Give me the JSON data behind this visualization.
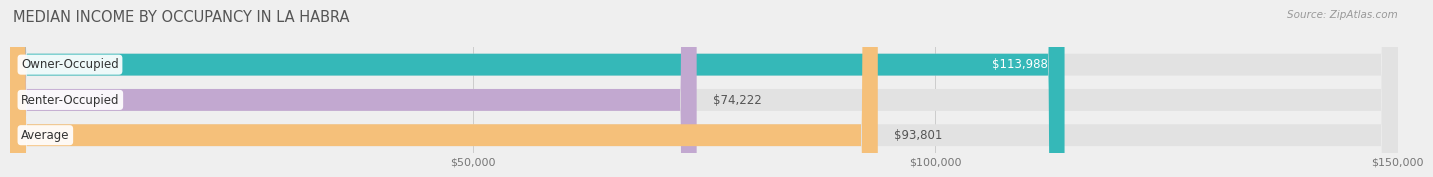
{
  "title": "MEDIAN INCOME BY OCCUPANCY IN LA HABRA",
  "source": "Source: ZipAtlas.com",
  "categories": [
    "Owner-Occupied",
    "Renter-Occupied",
    "Average"
  ],
  "values": [
    113988,
    74222,
    93801
  ],
  "labels": [
    "$113,988",
    "$74,222",
    "$93,801"
  ],
  "label_colors": [
    "white",
    "#555555",
    "#555555"
  ],
  "label_ha": [
    "right",
    "left",
    "left"
  ],
  "bar_colors": [
    "#35b8b8",
    "#c2a8d0",
    "#f5c07a"
  ],
  "background_color": "#efefef",
  "bar_bg_color": "#e2e2e2",
  "xlim": [
    0,
    150000
  ],
  "xticks": [
    50000,
    100000,
    150000
  ],
  "xtick_labels": [
    "$50,000",
    "$100,000",
    "$150,000"
  ],
  "title_fontsize": 10.5,
  "bar_label_fontsize": 8.5,
  "cat_label_fontsize": 8.5,
  "figsize": [
    14.06,
    1.96
  ]
}
